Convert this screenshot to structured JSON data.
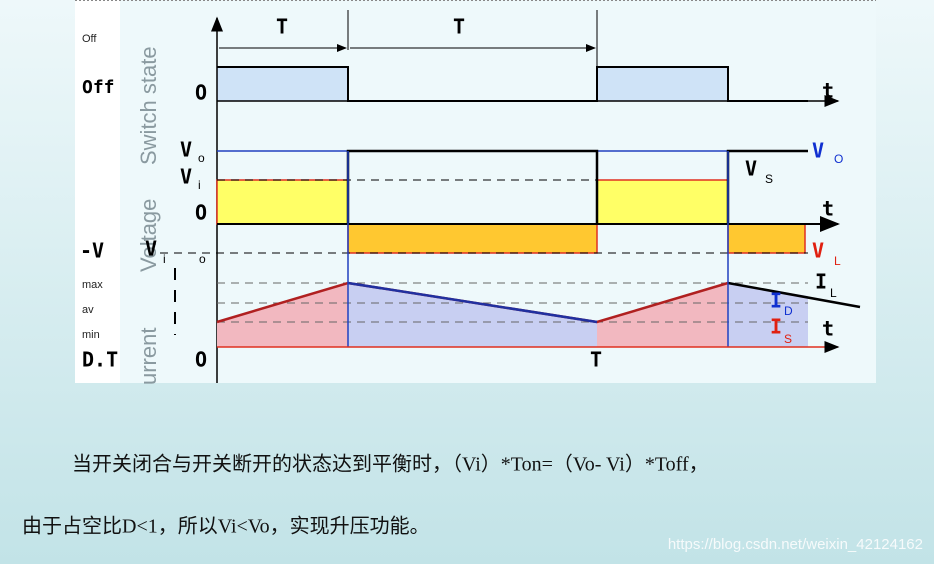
{
  "diagram": {
    "period_1": "T",
    "period_2": "T",
    "side_small": "Off",
    "side_off": "Off",
    "switch_state": "Switch state",
    "voltage": "Voltage",
    "current": "urrent",
    "switch_origin": "O",
    "switch_t": "t",
    "vo_main": "V",
    "vo_sub": "o",
    "vi_main": "V",
    "vi_sub": "i",
    "voltage_origin": "O",
    "voltage_t": "t",
    "neg_v": "-V",
    "neg_vi_main": "V",
    "neg_vi_sub": "i",
    "neg_o": "o",
    "vs_main": "V",
    "vs_sub": "S",
    "vO_main": "V",
    "vO_sub": "O",
    "vL_main": "V",
    "vL_sub": "L",
    "iL_main": "I",
    "iL_sub": "L",
    "iD_main": "I",
    "iD_sub": "D",
    "iS_main": "I",
    "iS_sub": "S",
    "max": "max",
    "av": "av",
    "min": "min",
    "dt": "D.T",
    "current_origin": "O",
    "current_T": "T",
    "current_t": "t"
  },
  "text": {
    "paragraph_1": "当开关闭合与开关断开的状态达到平衡时，（Vi）*Ton=（Vo- Vi）*Toff，",
    "paragraph_2": "由于占空比D<1，所以Vi<Vo，实现升压功能。",
    "watermark": "https://blog.csdn.net/weixin_42124162"
  }
}
